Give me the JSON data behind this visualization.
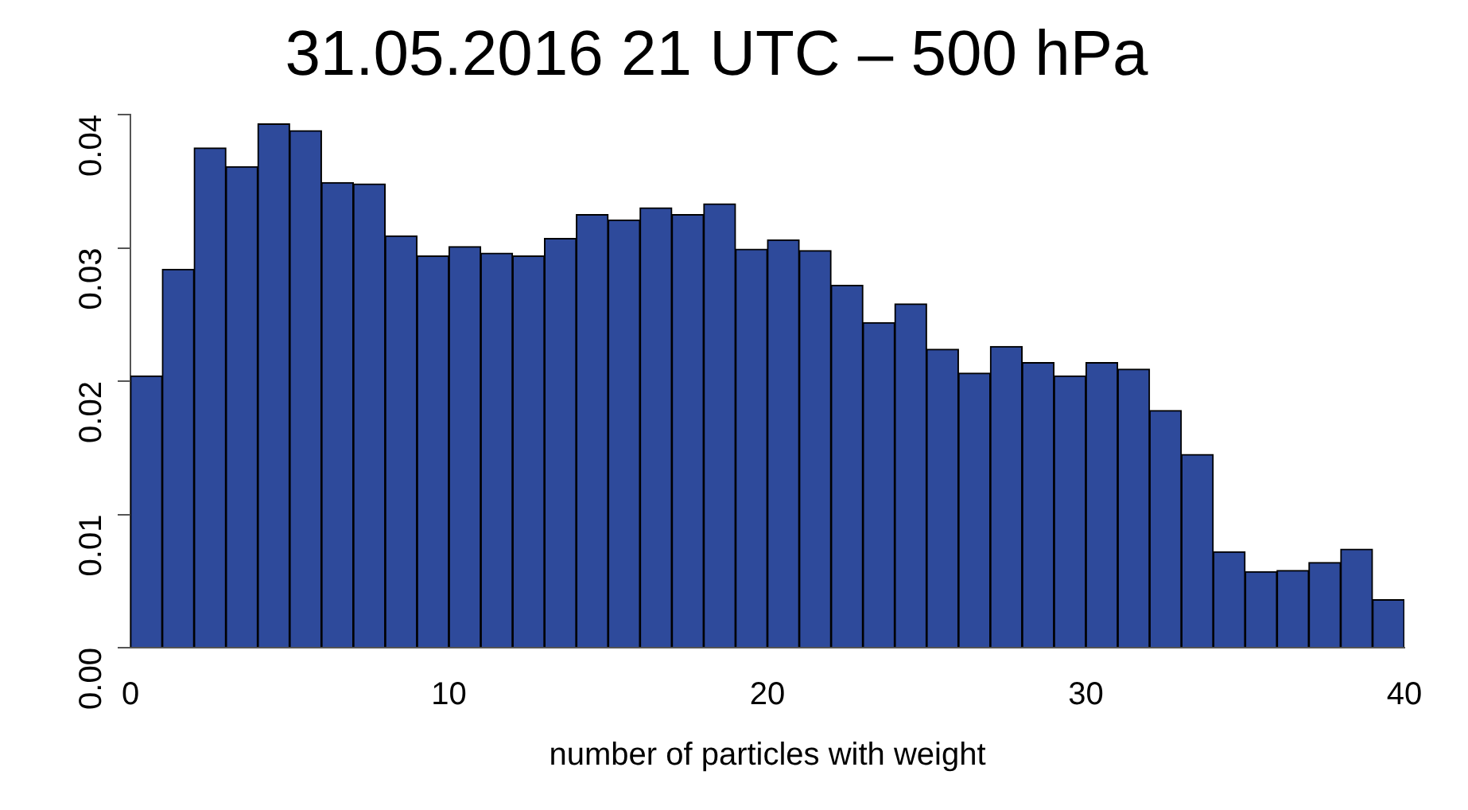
{
  "chart_data": {
    "type": "histogram",
    "title": "31.05.2016 21 UTC – 500 hPa",
    "xlabel": "number of particles with weight",
    "bins": [
      0,
      1,
      2,
      3,
      4,
      5,
      6,
      7,
      8,
      9,
      10,
      11,
      12,
      13,
      14,
      15,
      16,
      17,
      18,
      19,
      20,
      21,
      22,
      23,
      24,
      25,
      26,
      27,
      28,
      29,
      30,
      31,
      32,
      33,
      34,
      35,
      36,
      37,
      38,
      39,
      40
    ],
    "values": [
      0.0204,
      0.0284,
      0.0375,
      0.0361,
      0.0393,
      0.0388,
      0.0349,
      0.0348,
      0.0309,
      0.0294,
      0.0301,
      0.0296,
      0.0294,
      0.0307,
      0.0325,
      0.0321,
      0.033,
      0.0325,
      0.0333,
      0.0299,
      0.0306,
      0.0298,
      0.0272,
      0.0244,
      0.0258,
      0.0224,
      0.0206,
      0.0226,
      0.0214,
      0.0204,
      0.0214,
      0.0209,
      0.0178,
      0.0145,
      0.0072,
      0.0057,
      0.0058,
      0.0064,
      0.0074,
      0.0036
    ],
    "color": "#2e4a9b",
    "xlim": [
      0,
      40
    ],
    "xticks": [
      0,
      10,
      20,
      30,
      40
    ],
    "ylim": [
      0,
      0.04
    ],
    "yticks": [
      {
        "value": 0,
        "label": "0.00"
      },
      0.01,
      0.02,
      0.03,
      0.04
    ],
    "grid": false,
    "legend": false
  }
}
